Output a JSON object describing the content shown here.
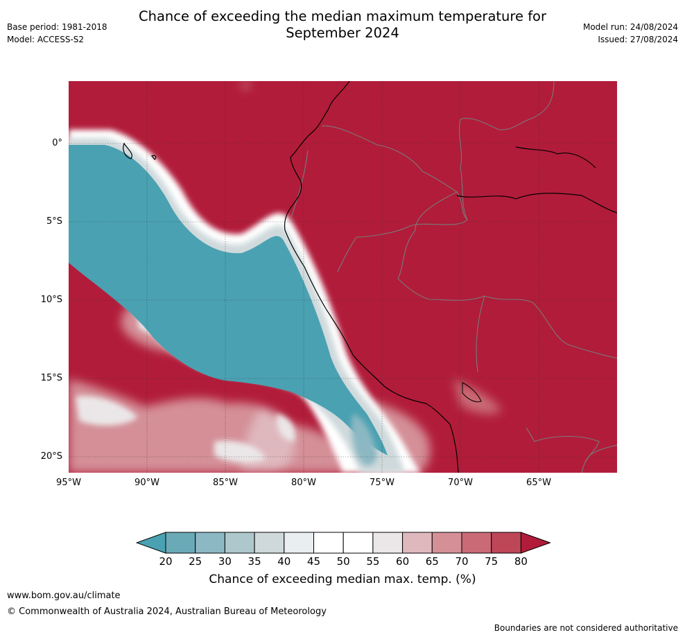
{
  "header": {
    "title_line1": "Chance of exceeding the median maximum temperature for",
    "title_line2": "September 2024",
    "base_period": "Base period: 1981-2018",
    "model": "Model: ACCESS-S2",
    "model_run": "Model run: 24/08/2024",
    "issued": "Issued: 27/08/2024"
  },
  "map": {
    "lat_labels": [
      "0°",
      "5°S",
      "10°S",
      "15°S",
      "20°S"
    ],
    "lon_labels": [
      "95°W",
      "90°W",
      "85°W",
      "80°W",
      "75°W",
      "70°W",
      "65°W"
    ],
    "colors": {
      "ocean_low": "#4aa1b2",
      "high": "#b11c3a",
      "neutral": "#ffffff",
      "coast": "#000000",
      "border": "#7a7a7a"
    }
  },
  "colorbar": {
    "ticks": [
      "20",
      "25",
      "30",
      "35",
      "40",
      "45",
      "50",
      "55",
      "60",
      "65",
      "70",
      "75",
      "80"
    ],
    "colors": [
      "#4aa1b2",
      "#6aaab7",
      "#8cb8c3",
      "#adc7cc",
      "#cfd9db",
      "#e9eef0",
      "#ffffff",
      "#ffffff",
      "#ebe7e8",
      "#dfb8be",
      "#d48f97",
      "#c96a76",
      "#bd4657",
      "#b11c3a"
    ],
    "label": "Chance of exceeding median max. temp. (%)"
  },
  "footer": {
    "url": "www.bom.gov.au/climate",
    "copyright": "© Commonwealth of Australia 2024, Australian Bureau of Meteorology",
    "disclaimer": "Boundaries are not considered authoritative"
  }
}
